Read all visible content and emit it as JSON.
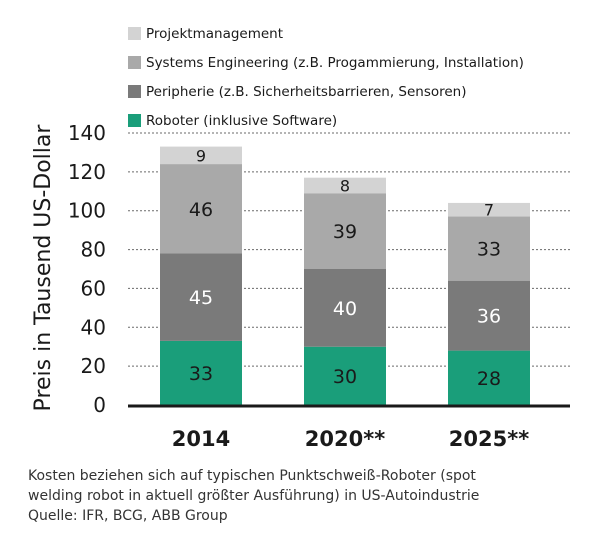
{
  "chart_data": {
    "type": "bar",
    "stacked": true,
    "ylabel": "Preis in Tausend US-Dollar",
    "ylim": [
      0,
      140
    ],
    "yticks": [
      0,
      20,
      40,
      60,
      80,
      100,
      120,
      140
    ],
    "grid": "dashed horizontal",
    "legend_placement": "top",
    "categories": [
      "2014",
      "2020**",
      "2025**"
    ],
    "series": [
      {
        "name": "Roboter (inklusive Software)",
        "color": "#1a9e7a",
        "label_color": "#1a1a1a",
        "values": [
          33,
          30,
          28
        ]
      },
      {
        "name": "Peripherie (z.B. Sicherheitsbarrieren, Sensoren)",
        "color": "#7a7a7a",
        "label_color": "#ffffff",
        "values": [
          45,
          40,
          36
        ]
      },
      {
        "name": "Systems Engineering (z.B. Progammierung, Installation)",
        "color": "#a9a9a9",
        "label_color": "#1a1a1a",
        "values": [
          46,
          39,
          33
        ]
      },
      {
        "name": "Projektmanagement",
        "color": "#d3d3d3",
        "label_color": "#1a1a1a",
        "values": [
          9,
          8,
          7
        ]
      }
    ]
  },
  "caption": {
    "line1": "Kosten beziehen sich auf typischen Punktschweiß-Roboter (spot",
    "line2": "welding robot in aktuell größter Ausführung) in US-Autoindustrie",
    "line3": "Quelle: IFR, BCG, ABB Group"
  }
}
